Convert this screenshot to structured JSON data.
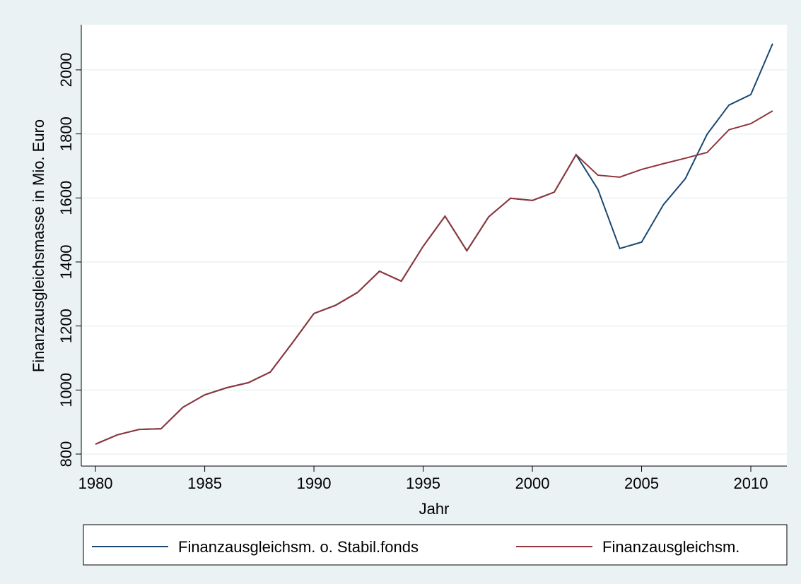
{
  "chart_data": {
    "type": "line",
    "x_label": "Jahr",
    "y_label": "Finanzausgleichsmasse in Mio. Euro",
    "x": [
      1980,
      1981,
      1982,
      1983,
      1984,
      1985,
      1986,
      1987,
      1988,
      1989,
      1990,
      1991,
      1992,
      1993,
      1994,
      1995,
      1996,
      1997,
      1998,
      1999,
      2000,
      2001,
      2002,
      2003,
      2004,
      2005,
      2006,
      2007,
      2008,
      2009,
      2010,
      2011
    ],
    "series": [
      {
        "name": "Finanzausgleichsm. o. Stabil.fonds",
        "color": "#1a476f",
        "values": [
          831,
          860,
          877,
          879,
          946,
          985,
          1007,
          1023,
          1056,
          1146,
          1239,
          1265,
          1305,
          1371,
          1340,
          1449,
          1543,
          1435,
          1541,
          1599,
          1592,
          1618,
          1735,
          1627,
          1442,
          1462,
          1579,
          1660,
          1799,
          1890,
          1923,
          2082
        ]
      },
      {
        "name": "Finanzausgleichsm.",
        "color": "#90353b",
        "values": [
          831,
          860,
          877,
          879,
          946,
          985,
          1007,
          1023,
          1056,
          1146,
          1239,
          1265,
          1305,
          1371,
          1340,
          1449,
          1543,
          1435,
          1541,
          1599,
          1592,
          1618,
          1735,
          1671,
          1665,
          1689,
          1707,
          1724,
          1742,
          1813,
          1832,
          1872
        ]
      }
    ],
    "xlim": [
      1979.35,
      2011.65
    ],
    "xticks": [
      1980,
      1985,
      1990,
      1995,
      2000,
      2005,
      2010
    ],
    "ylim": [
      762.5,
      2141
    ],
    "yticks": [
      800,
      1000,
      1200,
      1400,
      1600,
      1800,
      2000
    ],
    "grid": true,
    "legend": "bottom"
  }
}
